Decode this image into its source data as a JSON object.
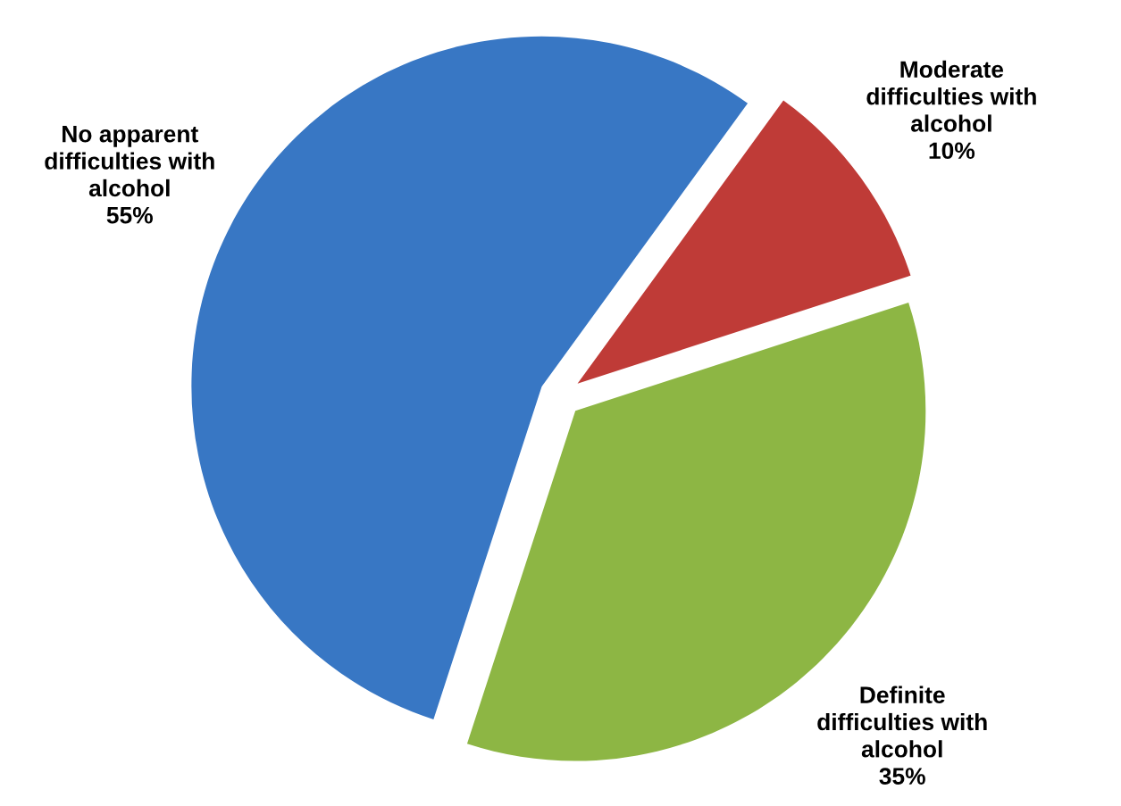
{
  "chart_data": {
    "type": "pie",
    "categories": [
      "Moderate difficulties with alcohol",
      "Definite difficulties with alcohol",
      "No apparent difficulties with alcohol"
    ],
    "values": [
      10,
      35,
      55
    ],
    "value_labels": [
      "10%",
      "35%",
      "55%"
    ],
    "colors": [
      "#bf3b37",
      "#8db644",
      "#3877c4"
    ],
    "legend": false
  }
}
